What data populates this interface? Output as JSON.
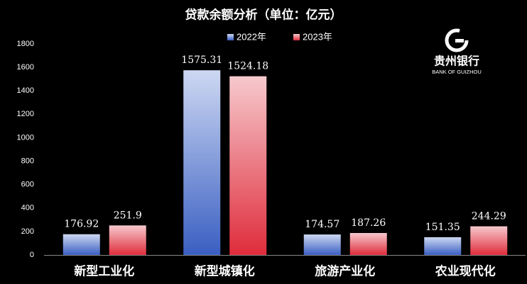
{
  "chart_data": {
    "type": "bar",
    "title": "贷款余额分析（单位：亿元）",
    "categories": [
      "新型工业化",
      "新型城镇化",
      "旅游产业化",
      "农业现代化"
    ],
    "series": [
      {
        "name": "2022年",
        "color": "#3f63c6",
        "values": [
          176.92,
          1575.31,
          174.57,
          151.35
        ]
      },
      {
        "name": "2023年",
        "color": "#e0323f",
        "values": [
          251.9,
          1524.18,
          187.26,
          244.29
        ]
      }
    ],
    "ylim": [
      0,
      1800
    ],
    "yticks": [
      0,
      200,
      400,
      600,
      800,
      1000,
      1200,
      1400,
      1600,
      1800
    ],
    "grid": false,
    "legend": "top"
  },
  "logo": {
    "name": "贵州银行",
    "subtitle": "BANK OF GUIZHOU"
  }
}
